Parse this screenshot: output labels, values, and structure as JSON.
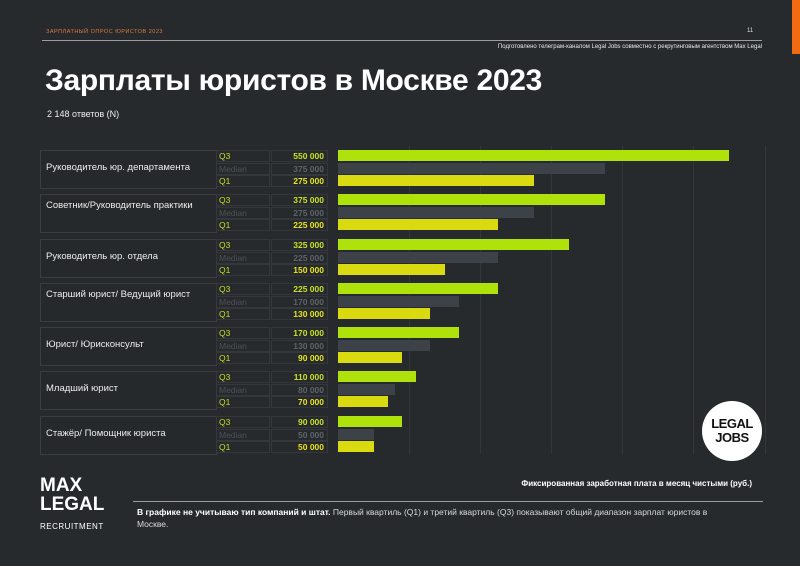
{
  "header": {
    "survey_label": "ЗАРПЛАТНЫЙ ОПРОС ЮРИСТОВ 2023",
    "page_number": "11",
    "credit": "Подготовлено телеграм-каналом Legal Jobs совместно с рекрутинговым агентством Max Legal",
    "title": "Зарплаты юристов в Москве 2023",
    "subtitle": "2 148 ответов (N)"
  },
  "colors": {
    "q3": "#aee20a",
    "median": "#3d4148",
    "q1": "#dada10",
    "accent": "#f26a12",
    "background": "#272a2d"
  },
  "labels": {
    "q3": "Q3",
    "median": "Median",
    "q1": "Q1"
  },
  "groups": [
    {
      "name": "Руководитель юр. департамента",
      "q3": "550 000",
      "median": "375 000",
      "q1": "275 000"
    },
    {
      "name": "Советник/Руководитель практики",
      "q3": "375 000",
      "median": "275 000",
      "q1": "225 000"
    },
    {
      "name": "Руководитель юр. отдела",
      "q3": "325 000",
      "median": "225 000",
      "q1": "150 000"
    },
    {
      "name": "Старший юрист/ Ведущий юрист",
      "q3": "225 000",
      "median": "170 000",
      "q1": "130 000"
    },
    {
      "name": "Юрист/ Юрисконсульт",
      "q3": "170 000",
      "median": "130 000",
      "q1": "90 000"
    },
    {
      "name": "Младший юрист",
      "q3": "110 000",
      "median": "80 000",
      "q1": "70 000"
    },
    {
      "name": "Стажёр/ Помощник юриста",
      "q3": "90 000",
      "median": "50 000",
      "q1": "50 000"
    }
  ],
  "chart_data": {
    "type": "bar",
    "orientation": "horizontal",
    "title": "Зарплаты юристов в Москве 2023",
    "subtitle": "2 148 ответов (N)",
    "xlabel": "Фиксированная заработная плата в месяц чистыми (руб.)",
    "categories": [
      "Руководитель юр. департамента",
      "Советник/Руководитель практики",
      "Руководитель юр. отдела",
      "Старший юрист/ Ведущий юрист",
      "Юрист/ Юрисконсульт",
      "Младший юрист",
      "Стажёр/ Помощник юриста"
    ],
    "series": [
      {
        "name": "Q3",
        "values": [
          550000,
          375000,
          325000,
          225000,
          170000,
          110000,
          90000
        ]
      },
      {
        "name": "Median",
        "values": [
          375000,
          275000,
          225000,
          170000,
          130000,
          80000,
          50000
        ]
      },
      {
        "name": "Q1",
        "values": [
          275000,
          225000,
          150000,
          130000,
          90000,
          70000,
          50000
        ]
      }
    ],
    "xlim": [
      0,
      600000
    ],
    "grid": true,
    "gridline_step": 100000
  },
  "logos": {
    "legal_jobs_line1": "LEGAL",
    "legal_jobs_line2": "JOBS",
    "max": "MAX",
    "legal": "LEGAL",
    "recruitment": "RECRUITMENT"
  },
  "footer": {
    "axis_note": "Фиксированная заработная плата в месяц чистыми (руб.)",
    "note_bold": "В графике не учитываю тип компаний и штат.",
    "note_text": " Первый квартиль (Q1) и третий квартиль (Q3) показывают общий диапазон зарплат юристов в Москве."
  }
}
